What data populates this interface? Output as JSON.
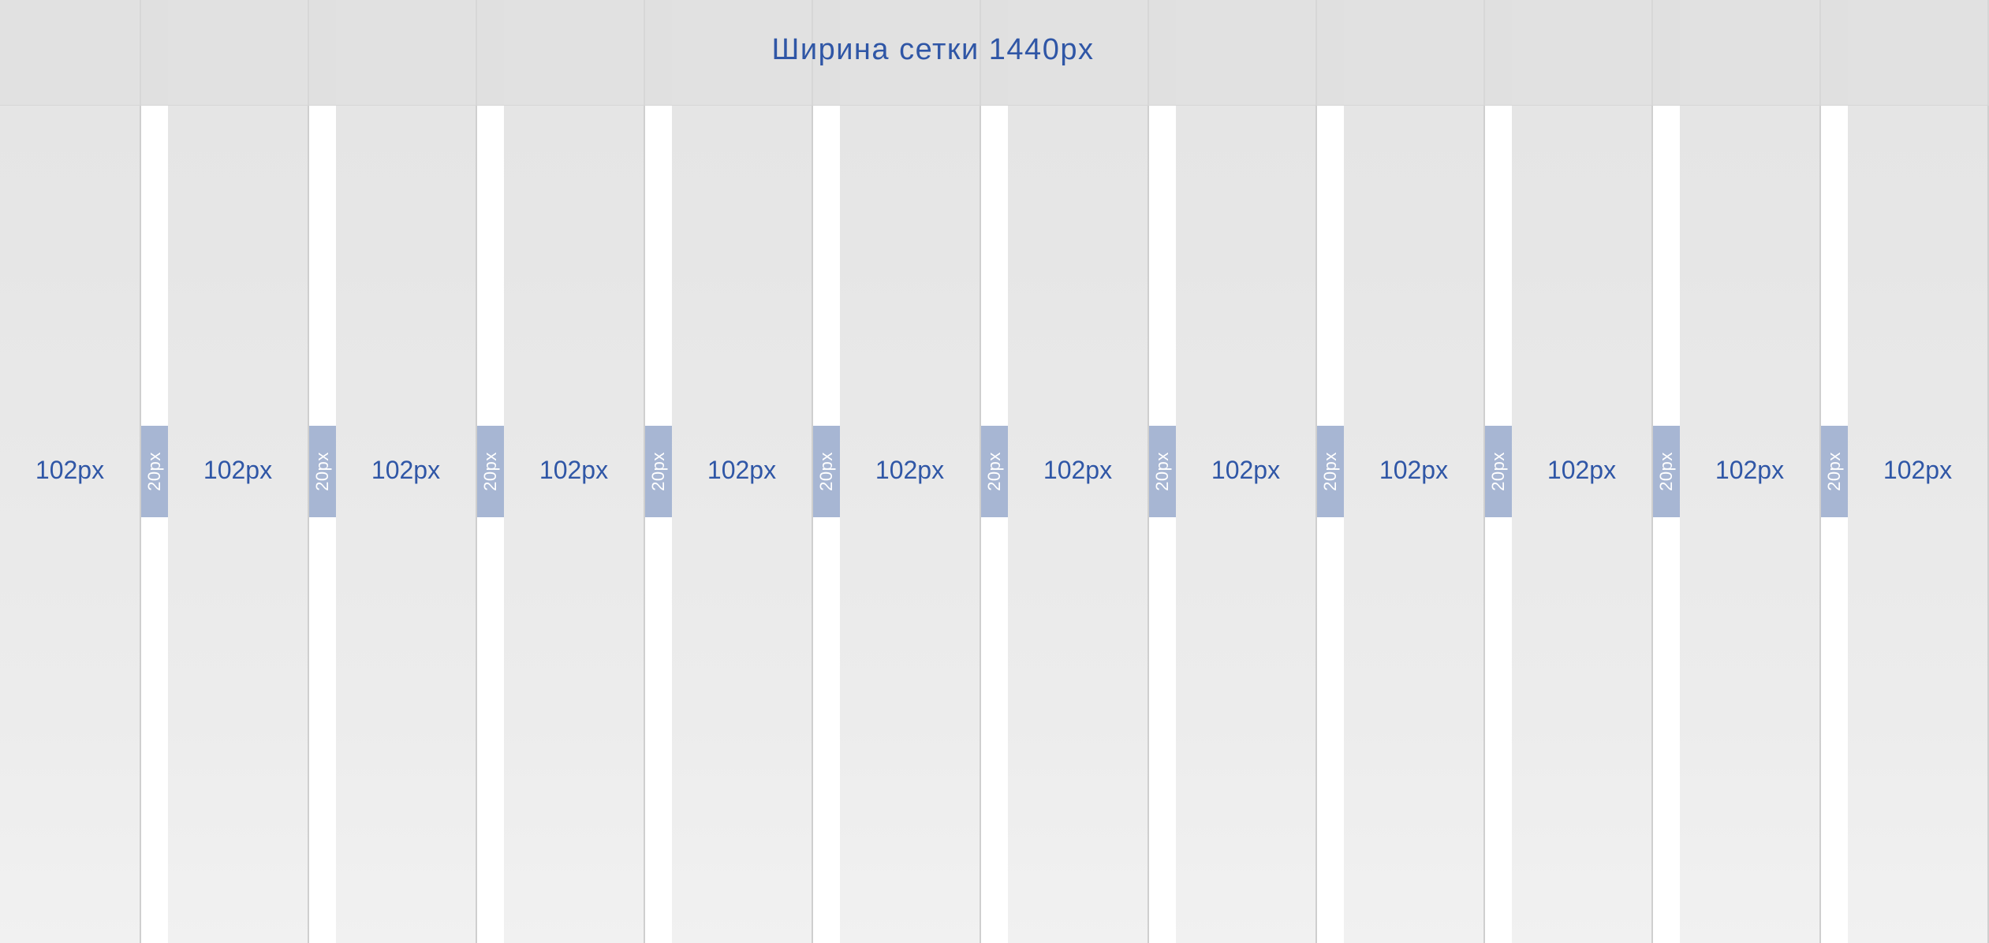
{
  "title": "Ширина сетки 1440px",
  "column_label": "102px",
  "gutter_label": "20px",
  "column_count": 12,
  "colors": {
    "accent": "#2f56a6",
    "gutter_badge": "#a7b6d3",
    "column_fill": "#e6e6e6",
    "header_band": "#e2e2e2"
  }
}
